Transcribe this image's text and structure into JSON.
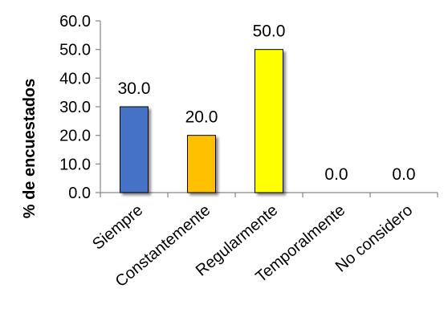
{
  "chart_data": {
    "type": "bar",
    "title": "",
    "xlabel": "",
    "ylabel": "% de encuestados",
    "ylim": [
      0,
      60
    ],
    "yticks": [
      "0.0",
      "10.0",
      "20.0",
      "30.0",
      "40.0",
      "50.0",
      "60.0"
    ],
    "grid": false,
    "legend": "none",
    "categories": [
      "Siempre",
      "Constantemente",
      "Regularmente",
      "Temporalmente",
      "No considero"
    ],
    "values": [
      30.0,
      20.0,
      50.0,
      0.0,
      0.0
    ],
    "data_labels": [
      "30.0",
      "20.0",
      "50.0",
      "0.0",
      "0.0"
    ],
    "colors": [
      "#4472C4",
      "#FFC000",
      "#FFFF00",
      "#A5A5A5",
      "#ED7D31"
    ]
  }
}
